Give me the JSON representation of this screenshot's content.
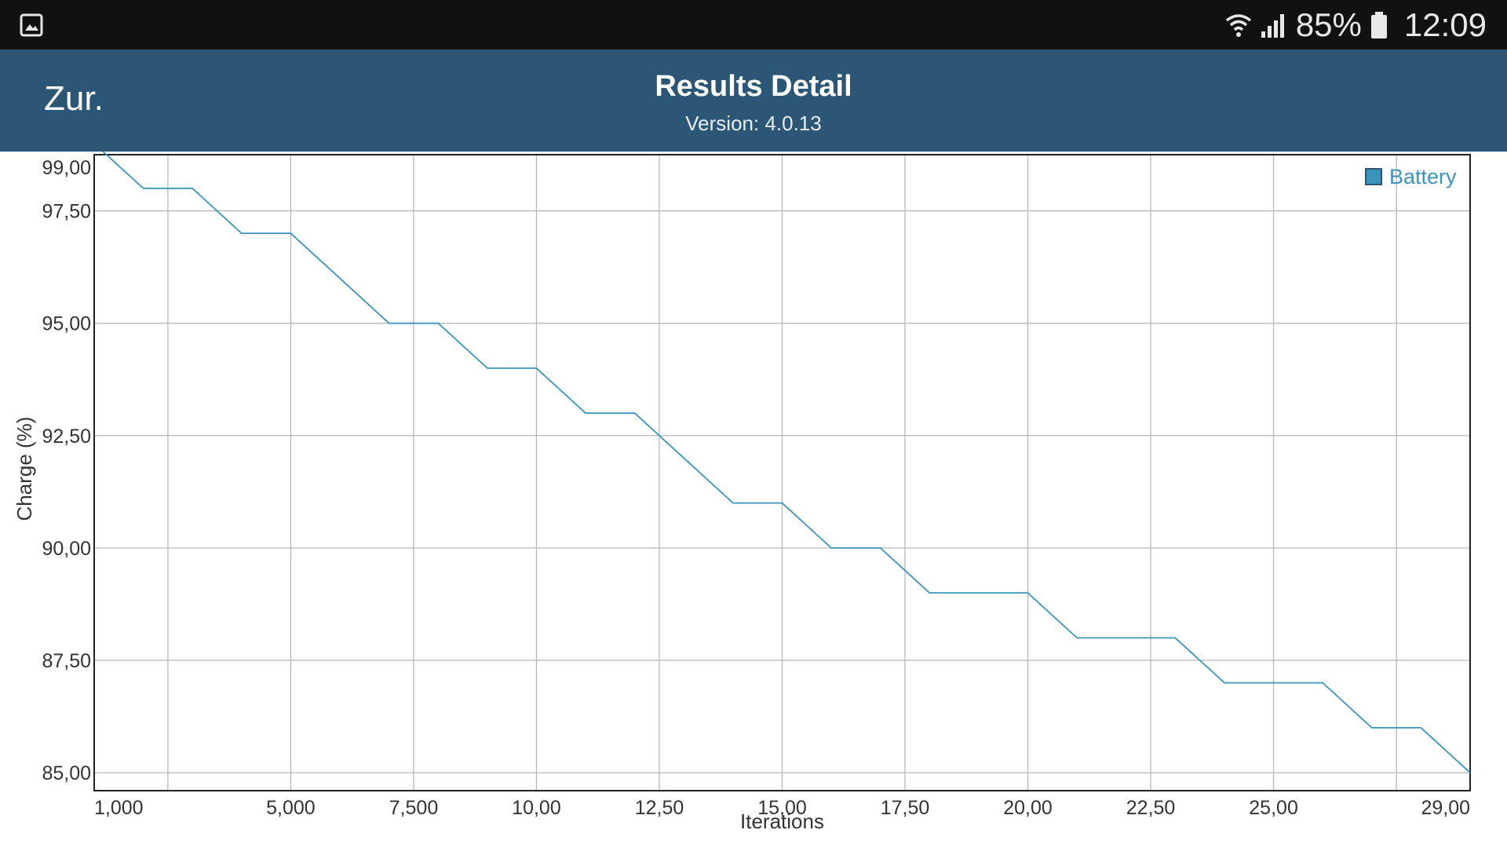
{
  "status_bar": {
    "battery_percent": "85%",
    "time": "12:09",
    "icons": [
      "gallery-icon",
      "wifi-icon",
      "signal-icon",
      "battery-icon"
    ]
  },
  "header": {
    "back_label": "Zur.",
    "title": "Results Detail",
    "subtitle": "Version: 4.0.13",
    "background": "#2c5676"
  },
  "chart_data": {
    "type": "line",
    "title": "",
    "xlabel": "Iterations",
    "ylabel": "Charge (%)",
    "x_ticks": [
      1000,
      5000,
      7500,
      10000,
      12500,
      15000,
      17500,
      20000,
      22500,
      25000,
      29000
    ],
    "x_tick_labels": [
      "1,000",
      "5,000",
      "7,500",
      "10,00",
      "12,50",
      "15,00",
      "17,50",
      "20,00",
      "22,50",
      "25,00",
      "29,00"
    ],
    "y_ticks": [
      85,
      87.5,
      90,
      92.5,
      95,
      97.5,
      99
    ],
    "y_tick_labels": [
      "85,00",
      "87,50",
      "90,00",
      "92,50",
      "95,00",
      "97,50",
      "99,00"
    ],
    "xlim": [
      1000,
      29000
    ],
    "ylim": [
      84.6,
      98.75
    ],
    "grid": true,
    "legend_position": "top-right",
    "series": [
      {
        "name": "Battery",
        "color": "#3a95be",
        "x": [
          1000,
          2000,
          3000,
          4000,
          5000,
          6000,
          7000,
          8000,
          9000,
          10000,
          11000,
          12000,
          13000,
          14000,
          15000,
          16000,
          17000,
          18000,
          19000,
          20000,
          21000,
          22000,
          23000,
          24000,
          25000,
          26000,
          27000,
          28000,
          29000
        ],
        "y": [
          99,
          98,
          98,
          97,
          97,
          96,
          95,
          95,
          94,
          94,
          93,
          93,
          92,
          91,
          91,
          90,
          90,
          89,
          89,
          89,
          88,
          88,
          88,
          87,
          87,
          87,
          86,
          86,
          85
        ]
      }
    ]
  }
}
